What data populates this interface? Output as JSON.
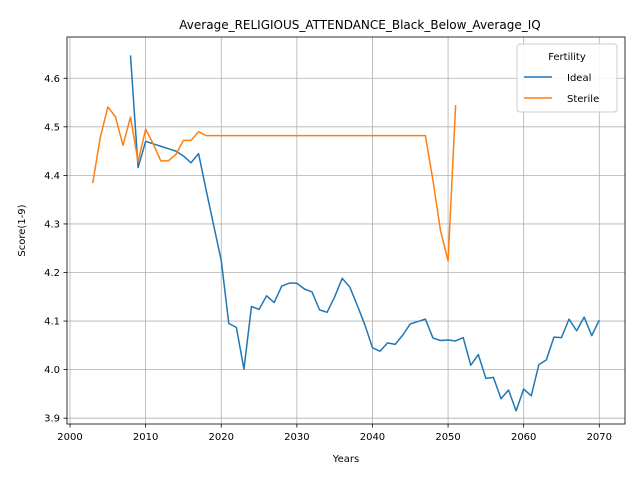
{
  "chart_data": {
    "type": "line",
    "title": "Average_RELIGIOUS_ATTENDANCE_Black_Below_Average_IQ",
    "xlabel": "Years",
    "ylabel": "Score(1-9)",
    "xlim": [
      1999.6,
      2073.4
    ],
    "ylim": [
      3.888,
      4.685
    ],
    "xticks": [
      2000,
      2010,
      2020,
      2030,
      2040,
      2050,
      2060,
      2070
    ],
    "yticks": [
      3.9,
      4.0,
      4.1,
      4.2,
      4.3,
      4.4,
      4.5,
      4.6
    ],
    "grid": true,
    "legend": {
      "title": "Fertility",
      "position": "top-right"
    },
    "series": [
      {
        "name": "Ideal",
        "color": "#1f77b4",
        "points": [
          [
            2008,
            4.647
          ],
          [
            2009,
            4.416
          ],
          [
            2010,
            4.47
          ],
          [
            2011,
            4.465
          ],
          [
            2012,
            4.46
          ],
          [
            2013,
            4.455
          ],
          [
            2014,
            4.45
          ],
          [
            2015,
            4.44
          ],
          [
            2016,
            4.426
          ],
          [
            2017,
            4.445
          ],
          [
            2018,
            4.37
          ],
          [
            2019,
            4.297
          ],
          [
            2020,
            4.225
          ],
          [
            2021,
            4.095
          ],
          [
            2022,
            4.087
          ],
          [
            2023,
            4.001
          ],
          [
            2024,
            4.13
          ],
          [
            2025,
            4.124
          ],
          [
            2026,
            4.152
          ],
          [
            2027,
            4.138
          ],
          [
            2028,
            4.172
          ],
          [
            2029,
            4.178
          ],
          [
            2030,
            4.178
          ],
          [
            2031,
            4.166
          ],
          [
            2032,
            4.16
          ],
          [
            2033,
            4.123
          ],
          [
            2034,
            4.118
          ],
          [
            2035,
            4.15
          ],
          [
            2036,
            4.188
          ],
          [
            2037,
            4.17
          ],
          [
            2038,
            4.132
          ],
          [
            2039,
            4.092
          ],
          [
            2040,
            4.045
          ],
          [
            2041,
            4.038
          ],
          [
            2042,
            4.055
          ],
          [
            2043,
            4.052
          ],
          [
            2044,
            4.071
          ],
          [
            2045,
            4.094
          ],
          [
            2046,
            4.099
          ],
          [
            2047,
            4.104
          ],
          [
            2048,
            4.065
          ],
          [
            2049,
            4.06
          ],
          [
            2050,
            4.061
          ],
          [
            2051,
            4.059
          ],
          [
            2052,
            4.066
          ],
          [
            2053,
            4.009
          ],
          [
            2054,
            4.031
          ],
          [
            2055,
            3.982
          ],
          [
            2056,
            3.984
          ],
          [
            2057,
            3.94
          ],
          [
            2058,
            3.958
          ],
          [
            2059,
            3.915
          ],
          [
            2060,
            3.96
          ],
          [
            2061,
            3.946
          ],
          [
            2062,
            4.01
          ],
          [
            2063,
            4.02
          ],
          [
            2064,
            4.067
          ],
          [
            2065,
            4.066
          ],
          [
            2066,
            4.104
          ],
          [
            2067,
            4.08
          ],
          [
            2068,
            4.108
          ],
          [
            2069,
            4.07
          ],
          [
            2070,
            4.102
          ]
        ]
      },
      {
        "name": "Sterile",
        "color": "#ff7f0e",
        "points": [
          [
            2003,
            4.384
          ],
          [
            2004,
            4.478
          ],
          [
            2005,
            4.541
          ],
          [
            2006,
            4.521
          ],
          [
            2007,
            4.462
          ],
          [
            2008,
            4.52
          ],
          [
            2009,
            4.428
          ],
          [
            2010,
            4.495
          ],
          [
            2011,
            4.465
          ],
          [
            2012,
            4.43
          ],
          [
            2013,
            4.43
          ],
          [
            2014,
            4.443
          ],
          [
            2015,
            4.472
          ],
          [
            2016,
            4.472
          ],
          [
            2017,
            4.49
          ],
          [
            2018,
            4.482
          ],
          [
            2020,
            4.482
          ],
          [
            2025,
            4.482
          ],
          [
            2030,
            4.482
          ],
          [
            2035,
            4.482
          ],
          [
            2040,
            4.482
          ],
          [
            2045,
            4.482
          ],
          [
            2047,
            4.482
          ],
          [
            2048,
            4.39
          ],
          [
            2049,
            4.286
          ],
          [
            2050,
            4.224
          ],
          [
            2051,
            4.545
          ]
        ]
      }
    ]
  }
}
